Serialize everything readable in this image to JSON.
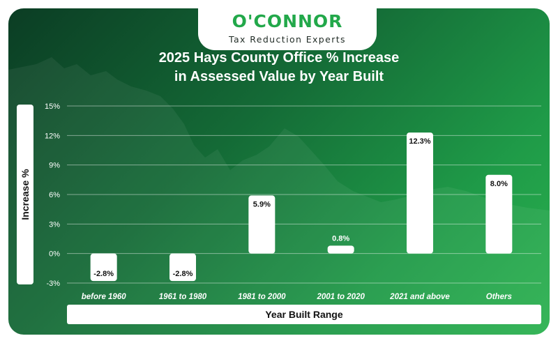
{
  "brand": {
    "name": "O'CONNOR",
    "tagline": "Tax Reduction Experts"
  },
  "colors": {
    "brand_green": "#22a84a",
    "bar": "#ffffff",
    "background_dark": "#0b3d24",
    "background_light": "#2bb24f"
  },
  "chart_data": {
    "type": "bar",
    "title": "2025 Hays County Office % Increase in Assessed Value by Year Built",
    "title_lines": [
      "2025 Hays County Office % Increase",
      "in Assessed Value by Year Built"
    ],
    "xlabel": "Year Built Range",
    "ylabel": "Increase %",
    "categories": [
      "before 1960",
      "1961 to 1980",
      "1981 to 2000",
      "2001 to 2020",
      "2021 and above",
      "Others"
    ],
    "values": [
      -2.8,
      -2.8,
      5.9,
      0.8,
      12.3,
      8.0
    ],
    "value_labels": [
      "-2.8%",
      "-2.8%",
      "5.9%",
      "0.8%",
      "12.3%",
      "8.0%"
    ],
    "ylim": [
      -3,
      15
    ],
    "yticks": [
      15,
      12,
      9,
      6,
      3,
      0,
      -3
    ],
    "ytick_labels": [
      "15%",
      "12%",
      "9%",
      "6%",
      "3%",
      "0%",
      "-3%"
    ],
    "grid": true,
    "legend": "none"
  }
}
